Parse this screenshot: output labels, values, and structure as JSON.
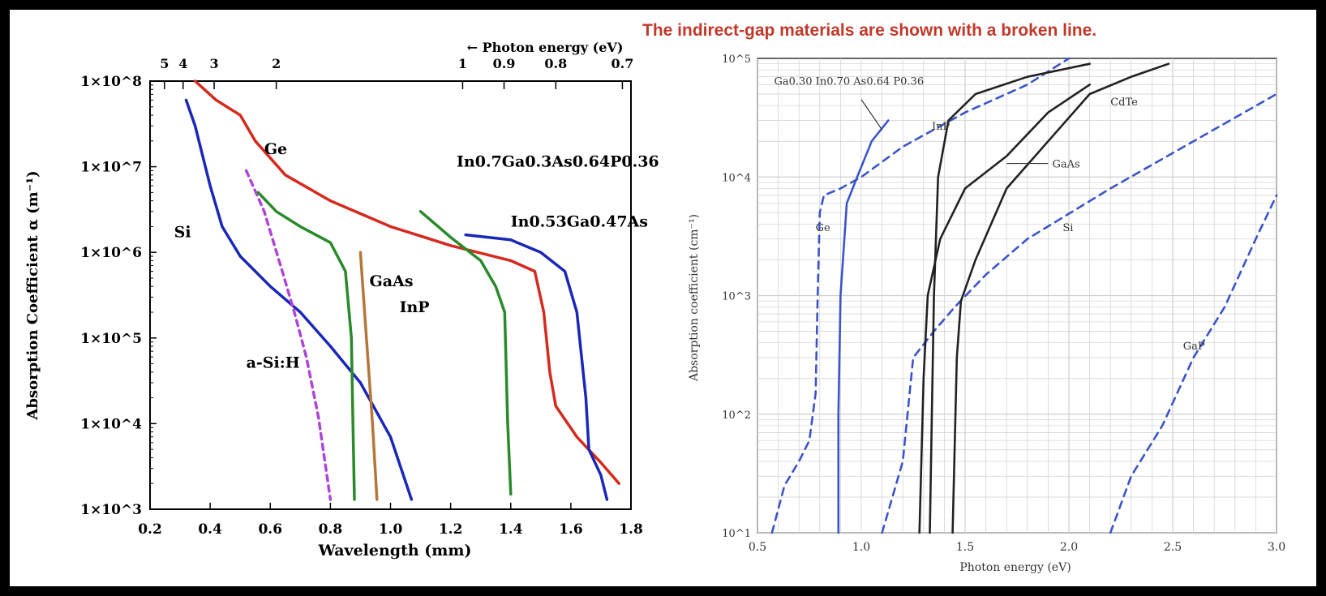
{
  "note": "The indirect-gap materials are shown with a broken line.",
  "colors": {
    "red": "#d42a1f",
    "blue": "#1a27b8",
    "green": "#2a8a2a",
    "brown": "#b5763a",
    "purple": "#b044d8",
    "lightblue": "#3b55c9",
    "black": "#222222",
    "note": "#c0392b"
  },
  "chart_data": [
    {
      "type": "line",
      "xlabel": "Wavelength (mm)",
      "ylabel": "Absorption Coefficient α (m⁻¹)",
      "xlim": [
        0.2,
        1.8
      ],
      "ylim_log10": [
        3,
        8
      ],
      "x_ticks": [
        "0.2",
        "0.4",
        "0.6",
        "0.8",
        "1.0",
        "1.2",
        "1.4",
        "1.6",
        "1.8"
      ],
      "y_ticks": [
        "1×10^3",
        "1×10^4",
        "1×10^5",
        "1×10^6",
        "1×10^7",
        "1×10^8"
      ],
      "top_axis": {
        "label": "← Photon energy (eV)",
        "ticks": [
          "5",
          "4",
          "3",
          "2",
          "1",
          "0.9",
          "0.8",
          "0.7"
        ]
      },
      "series": [
        {
          "name": "Ge",
          "color": "red",
          "points": [
            [
              0.35,
              100000000.0
            ],
            [
              0.42,
              60000000.0
            ],
            [
              0.5,
              40000000.0
            ],
            [
              0.55,
              20000000.0
            ],
            [
              0.65,
              8000000.0
            ],
            [
              0.8,
              4000000.0
            ],
            [
              1.0,
              2000000.0
            ],
            [
              1.2,
              1200000.0
            ],
            [
              1.4,
              800000.0
            ],
            [
              1.48,
              600000.0
            ],
            [
              1.51,
              200000.0
            ],
            [
              1.53,
              40000.0
            ],
            [
              1.55,
              16000.0
            ],
            [
              1.62,
              7000.0
            ],
            [
              1.7,
              3500.0
            ],
            [
              1.76,
              2000.0
            ]
          ]
        },
        {
          "name": "Si",
          "color": "blue",
          "points": [
            [
              0.32,
              60000000.0
            ],
            [
              0.35,
              30000000.0
            ],
            [
              0.4,
              6000000.0
            ],
            [
              0.44,
              2000000.0
            ],
            [
              0.5,
              900000.0
            ],
            [
              0.6,
              400000.0
            ],
            [
              0.7,
              200000.0
            ],
            [
              0.8,
              80000.0
            ],
            [
              0.9,
              30000.0
            ],
            [
              1.0,
              7000.0
            ],
            [
              1.07,
              1300.0
            ]
          ]
        },
        {
          "name": "a-Si:H",
          "color": "purple",
          "dashed": true,
          "points": [
            [
              0.52,
              9000000.0
            ],
            [
              0.58,
              3000000.0
            ],
            [
              0.64,
              600000.0
            ],
            [
              0.68,
              200000.0
            ],
            [
              0.72,
              60000.0
            ],
            [
              0.76,
              12000.0
            ],
            [
              0.8,
              1300.0
            ]
          ]
        },
        {
          "name": "GaAs",
          "color": "green",
          "points": [
            [
              0.56,
              5000000.0
            ],
            [
              0.62,
              3000000.0
            ],
            [
              0.7,
              2000000.0
            ],
            [
              0.8,
              1300000.0
            ],
            [
              0.85,
              600000.0
            ],
            [
              0.87,
              100000.0
            ],
            [
              0.875,
              10000.0
            ],
            [
              0.88,
              1300.0
            ]
          ]
        },
        {
          "name": "InP",
          "color": "brown",
          "points": [
            [
              0.9,
              1000000.0
            ],
            [
              0.92,
              100000.0
            ],
            [
              0.94,
              10000.0
            ],
            [
              0.955,
              1300.0
            ]
          ]
        },
        {
          "name": "In0.7Ga0.3As0.64P0.36",
          "color": "green",
          "points": [
            [
              1.1,
              3000000.0
            ],
            [
              1.2,
              1500000.0
            ],
            [
              1.3,
              800000.0
            ],
            [
              1.35,
              400000.0
            ],
            [
              1.38,
              200000.0
            ],
            [
              1.39,
              10000.0
            ],
            [
              1.4,
              1500.0
            ]
          ]
        },
        {
          "name": "In0.53Ga0.47As",
          "color": "blue",
          "points": [
            [
              1.25,
              1600000.0
            ],
            [
              1.4,
              1400000.0
            ],
            [
              1.5,
              1000000.0
            ],
            [
              1.58,
              600000.0
            ],
            [
              1.62,
              200000.0
            ],
            [
              1.65,
              20000.0
            ],
            [
              1.66,
              5000.0
            ],
            [
              1.7,
              2500.0
            ],
            [
              1.72,
              1300.0
            ]
          ]
        }
      ],
      "labels": [
        {
          "text": "Ge",
          "series": 0
        },
        {
          "text": "Si",
          "series": 1
        },
        {
          "text": "a-Si:H",
          "series": 2
        },
        {
          "text": "GaAs",
          "series": 3
        },
        {
          "text": "InP",
          "series": 4
        },
        {
          "text": "In0.7Ga0.3As0.64P0.36",
          "series": 5
        },
        {
          "text": "In0.53Ga0.47As",
          "series": 6
        }
      ]
    },
    {
      "type": "line",
      "xlabel": "Photon energy (eV)",
      "ylabel": "Absorption coefficient (cm⁻¹)",
      "xlim": [
        0.5,
        3.0
      ],
      "ylim_log10": [
        1,
        5
      ],
      "x_ticks": [
        "0.5",
        "1.0",
        "1.5",
        "2.0",
        "2.5",
        "3.0"
      ],
      "y_ticks": [
        "10^1",
        "10^2",
        "10^3",
        "10^4",
        "10^5"
      ],
      "grid": true,
      "series": [
        {
          "name": "Ga0.30In0.70As0.64P0.36",
          "color": "lightblue",
          "points": [
            [
              0.89,
              10
            ],
            [
              0.89,
              100
            ],
            [
              0.9,
              1000
            ],
            [
              0.93,
              6000
            ],
            [
              0.98,
              10000.0
            ],
            [
              1.05,
              20000.0
            ],
            [
              1.13,
              30000.0
            ]
          ]
        },
        {
          "name": "Ge",
          "color": "lightblue",
          "dashed": true,
          "points": [
            [
              0.57,
              10
            ],
            [
              0.63,
              25
            ],
            [
              0.7,
              40
            ],
            [
              0.75,
              60
            ],
            [
              0.78,
              150
            ],
            [
              0.79,
              1000
            ],
            [
              0.8,
              5000
            ],
            [
              0.82,
              7000
            ],
            [
              0.9,
              8000
            ],
            [
              1.0,
              10000.0
            ],
            [
              1.2,
              18000.0
            ],
            [
              1.5,
              35000.0
            ],
            [
              1.8,
              60000.0
            ],
            [
              2.0,
              100000.0
            ]
          ]
        },
        {
          "name": "Si",
          "color": "lightblue",
          "dashed": true,
          "points": [
            [
              1.1,
              10
            ],
            [
              1.15,
              20
            ],
            [
              1.2,
              40
            ],
            [
              1.25,
              300
            ],
            [
              1.35,
              500
            ],
            [
              1.45,
              800
            ],
            [
              1.6,
              1500
            ],
            [
              1.8,
              3000
            ],
            [
              2.2,
              8000
            ],
            [
              2.6,
              20000.0
            ],
            [
              3.0,
              50000.0
            ]
          ]
        },
        {
          "name": "GaP",
          "color": "lightblue",
          "dashed": true,
          "points": [
            [
              2.2,
              10
            ],
            [
              2.3,
              30
            ],
            [
              2.45,
              80
            ],
            [
              2.6,
              300
            ],
            [
              2.75,
              800
            ],
            [
              2.9,
              3000
            ],
            [
              3.0,
              7000
            ]
          ]
        },
        {
          "name": "InP",
          "color": "black",
          "points": [
            [
              1.33,
              10
            ],
            [
              1.34,
              100
            ],
            [
              1.35,
              1000
            ],
            [
              1.37,
              10000.0
            ],
            [
              1.42,
              30000.0
            ],
            [
              1.55,
              50000.0
            ],
            [
              1.8,
              70000.0
            ],
            [
              2.1,
              90000.0
            ]
          ]
        },
        {
          "name": "GaAs",
          "color": "black",
          "points": [
            [
              1.28,
              10
            ],
            [
              1.3,
              200
            ],
            [
              1.32,
              1000
            ],
            [
              1.38,
              3000
            ],
            [
              1.5,
              8000
            ],
            [
              1.7,
              15000.0
            ],
            [
              1.9,
              35000.0
            ],
            [
              2.1,
              60000.0
            ]
          ]
        },
        {
          "name": "CdTe",
          "color": "black",
          "points": [
            [
              1.44,
              10
            ],
            [
              1.46,
              300
            ],
            [
              1.48,
              900
            ],
            [
              1.55,
              2000
            ],
            [
              1.7,
              8000
            ],
            [
              1.9,
              20000.0
            ],
            [
              2.1,
              50000.0
            ],
            [
              2.3,
              70000.0
            ],
            [
              2.48,
              90000.0
            ]
          ]
        }
      ],
      "labels": [
        {
          "text": "Ga0.30 In0.70 As0.64 P0.36"
        },
        {
          "text": "InP"
        },
        {
          "text": "CdTe"
        },
        {
          "text": "GaAs"
        },
        {
          "text": "Ge"
        },
        {
          "text": "Si"
        },
        {
          "text": "GaP"
        }
      ]
    }
  ]
}
